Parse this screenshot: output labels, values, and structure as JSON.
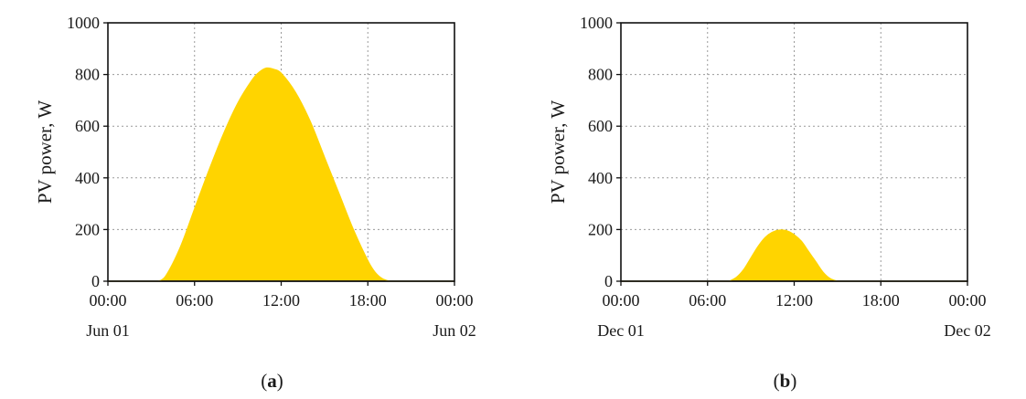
{
  "chart_data": [
    {
      "id": "a",
      "type": "area",
      "ylabel": "PV power, W",
      "ylim": [
        0,
        1000
      ],
      "yticks": [
        "0",
        "200",
        "400",
        "600",
        "800",
        "1000"
      ],
      "xlim_hours": [
        0,
        24
      ],
      "xticks": [
        "00:00",
        "06:00",
        "12:00",
        "18:00",
        "00:00"
      ],
      "xdates": [
        "Jun 01",
        "Jun 02"
      ],
      "grid": true,
      "color": "#FFD400",
      "caption": "a",
      "series": [
        {
          "x_hours": [
            3.5,
            4,
            5,
            6,
            7,
            8,
            9,
            10,
            10.5,
            11,
            11.5,
            12,
            13,
            14,
            15,
            16,
            17,
            18,
            18.5,
            19,
            19.5
          ],
          "values": [
            0,
            20,
            130,
            280,
            430,
            570,
            690,
            780,
            810,
            825,
            820,
            805,
            730,
            620,
            480,
            340,
            200,
            80,
            35,
            10,
            0
          ]
        }
      ]
    },
    {
      "id": "b",
      "type": "area",
      "ylabel": "PV power, W",
      "ylim": [
        0,
        1000
      ],
      "yticks": [
        "0",
        "200",
        "400",
        "600",
        "800",
        "1000"
      ],
      "xlim_hours": [
        0,
        24
      ],
      "xticks": [
        "00:00",
        "06:00",
        "12:00",
        "18:00",
        "00:00"
      ],
      "xdates": [
        "Dec 01",
        "Dec 02"
      ],
      "grid": true,
      "color": "#FFD400",
      "caption": "b",
      "series": [
        {
          "x_hours": [
            7.5,
            8,
            8.5,
            9,
            9.5,
            10,
            10.5,
            11,
            11.5,
            12,
            12.5,
            13,
            13.5,
            14,
            14.5,
            15
          ],
          "values": [
            0,
            15,
            45,
            90,
            135,
            170,
            190,
            198,
            195,
            180,
            155,
            115,
            75,
            35,
            10,
            0
          ]
        }
      ]
    }
  ]
}
